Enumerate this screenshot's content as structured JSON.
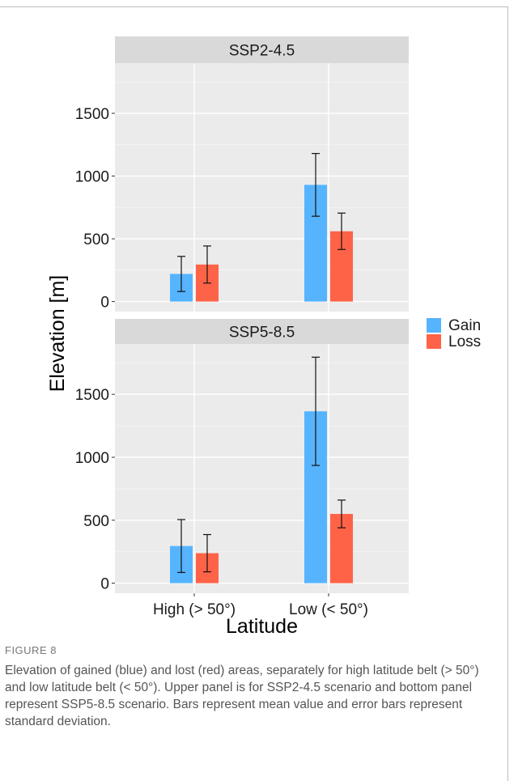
{
  "figure": {
    "label": "FIGURE 8",
    "caption": "Elevation of gained (blue) and lost (red) areas, separately for high latitude belt (> 50°) and low latitude belt (< 50°). Upper panel is for SSP2-4.5 scenario and bottom panel represent SSP5-8.5 scenario. Bars represent mean value and error bars represent standard deviation."
  },
  "colors": {
    "gain": "#56B4FF",
    "loss": "#FF6347",
    "panel_bg": "#EBEBEB",
    "strip_bg": "#D9D9D9"
  },
  "chart_data": {
    "type": "bar",
    "xlabel": "Latitude",
    "ylabel": "Elevation [m]",
    "categories": [
      "High (> 50°)",
      "Low (< 50°)"
    ],
    "legend": {
      "position": "right",
      "entries": [
        "Gain",
        "Loss"
      ]
    },
    "grid": true,
    "yticks": [
      0,
      500,
      1000,
      1500
    ],
    "ylim": [
      -80,
      1900
    ],
    "panels": [
      {
        "title": "SSP2-4.5",
        "series": [
          {
            "name": "Gain",
            "values": [
              220,
              930
            ],
            "sd": [
              140,
              250
            ]
          },
          {
            "name": "Loss",
            "values": [
              295,
              560
            ],
            "sd": [
              148,
              145
            ]
          }
        ]
      },
      {
        "title": "SSP5-8.5",
        "series": [
          {
            "name": "Gain",
            "values": [
              295,
              1365
            ],
            "sd": [
              210,
              430
            ]
          },
          {
            "name": "Loss",
            "values": [
              238,
              550
            ],
            "sd": [
              148,
              110
            ]
          }
        ]
      }
    ]
  }
}
